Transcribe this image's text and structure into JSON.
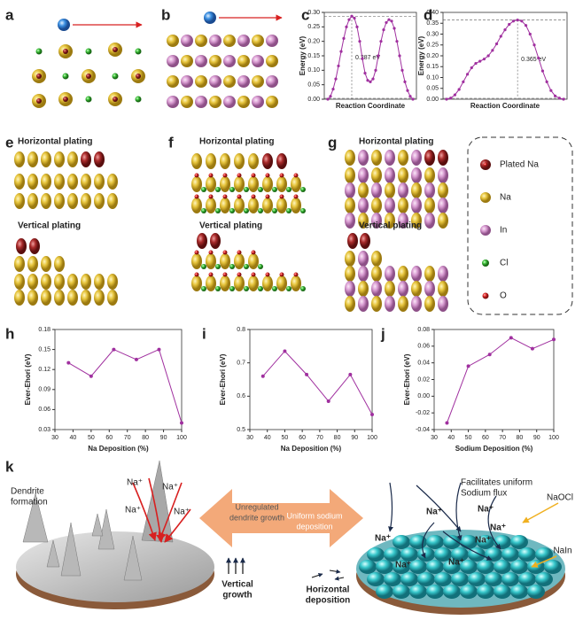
{
  "panel_labels": [
    "a",
    "b",
    "c",
    "d",
    "e",
    "f",
    "g",
    "h",
    "i",
    "j",
    "k"
  ],
  "chart_data": [
    {
      "type": "line",
      "y_label": "Energy (eV)",
      "x_label": "Reaction Coordinate",
      "annotation": "0.287 eV",
      "color": "#a0309f",
      "values": [
        0,
        0.01,
        0.035,
        0.07,
        0.115,
        0.165,
        0.21,
        0.25,
        0.275,
        0.287,
        0.28,
        0.25,
        0.2,
        0.14,
        0.09,
        0.065,
        0.06,
        0.07,
        0.1,
        0.15,
        0.2,
        0.24,
        0.265,
        0.275,
        0.27,
        0.245,
        0.2,
        0.15,
        0.1,
        0.06,
        0.03,
        0.01,
        0
      ],
      "ylim": [
        0,
        0.3
      ],
      "yticks": [
        {
          "value": 0,
          "label": "0.00"
        },
        0.05,
        {
          "value": 0.1,
          "label": "0.10"
        },
        0.15,
        {
          "value": 0.2,
          "label": "0.20"
        },
        0.25,
        {
          "value": 0.3,
          "label": "0.30"
        }
      ]
    },
    {
      "type": "line",
      "y_label": "Energy (eV)",
      "x_label": "Reaction Coordinate",
      "annotation": "0.365 eV",
      "color": "#a0309f",
      "values": [
        0,
        0.005,
        0.02,
        0.045,
        0.08,
        0.115,
        0.145,
        0.165,
        0.175,
        0.185,
        0.2,
        0.225,
        0.255,
        0.29,
        0.32,
        0.345,
        0.36,
        0.365,
        0.36,
        0.34,
        0.3,
        0.25,
        0.19,
        0.13,
        0.08,
        0.04,
        0.015,
        0.005,
        0
      ],
      "ylim": [
        0,
        0.4
      ],
      "yticks": [
        {
          "value": 0,
          "label": "0.00"
        },
        0.05,
        {
          "value": 0.1,
          "label": "0.10"
        },
        0.15,
        {
          "value": 0.2,
          "label": "0.20"
        },
        0.25,
        {
          "value": 0.3,
          "label": "0.30"
        },
        0.35,
        {
          "value": 0.4,
          "label": "0.40"
        }
      ]
    },
    {
      "type": "line",
      "y_label": "Ever-Ehori (eV)",
      "x_label": "Na Deposition (%)",
      "color": "#a0309f",
      "x": [
        37.5,
        50,
        62.5,
        75,
        87.5,
        100
      ],
      "values": [
        0.13,
        0.11,
        0.15,
        0.135,
        0.15,
        0.04
      ],
      "xlim": [
        30,
        100
      ],
      "xticks": [
        30,
        40,
        50,
        60,
        70,
        80,
        90,
        100
      ],
      "ylim": [
        0.03,
        0.18
      ],
      "yticks": [
        0.03,
        0.06,
        0.09,
        0.12,
        0.15,
        0.18
      ]
    },
    {
      "type": "line",
      "y_label": "Ever-Ehori (eV)",
      "x_label": "Na Deposition (%)",
      "color": "#a0309f",
      "x": [
        37.5,
        50,
        62.5,
        75,
        87.5,
        100
      ],
      "values": [
        0.66,
        0.735,
        0.665,
        0.585,
        0.665,
        0.545
      ],
      "xlim": [
        30,
        100
      ],
      "xticks": [
        30,
        40,
        50,
        60,
        70,
        80,
        90,
        100
      ],
      "ylim": [
        0.5,
        0.8
      ],
      "yticks": [
        0.5,
        0.6,
        0.7,
        0.8
      ]
    },
    {
      "type": "line",
      "y_label": "Ever-Ehori (eV)",
      "x_label": "Sodium Deposition (%)",
      "color": "#a0309f",
      "x": [
        37.5,
        50,
        62.5,
        75,
        87.5,
        100
      ],
      "values": [
        -0.032,
        0.036,
        0.05,
        0.07,
        0.057,
        0.068
      ],
      "xlim": [
        30,
        100
      ],
      "xticks": [
        30,
        40,
        50,
        60,
        70,
        80,
        90,
        100
      ],
      "ylim": [
        -0.04,
        0.08
      ],
      "yticks": [
        -0.04,
        -0.02,
        {
          "value": 0,
          "label": "0.00"
        },
        0.02,
        0.04,
        0.06,
        0.08
      ]
    }
  ],
  "structures": [
    {
      "horizontal": "Horizontal plating",
      "vertical": "Vertical plating"
    },
    {
      "horizontal": "Horizontal plating",
      "vertical": "Vertical plating"
    },
    {
      "horizontal": "Horizontal plating",
      "vertical": "Vertical plating"
    }
  ],
  "legend": [
    "Plated Na",
    "Na",
    "In",
    "Cl",
    "O"
  ],
  "schematic": {
    "left_title": [
      "Dendrite",
      "formation"
    ],
    "right_title": [
      "Facilitates uniform",
      "Sodium flux"
    ],
    "arrow_left": [
      "Unregulated",
      "dendrite growth"
    ],
    "arrow_right": [
      "Uniform sodium",
      "deposition"
    ],
    "vertical": [
      "Vertical",
      "growth"
    ],
    "horizontal": [
      "Horizontal",
      "deposition"
    ],
    "ions_left": [
      "Na⁺",
      "Na⁺",
      "Na⁺",
      "Na⁺"
    ],
    "ions_right": [
      "Na⁺",
      "Na⁺",
      "Na⁺",
      "Na⁺",
      "Na⁺",
      "Na⁺",
      "Na⁺"
    ],
    "naocl": "NaOCl",
    "nain": "NaIn"
  }
}
